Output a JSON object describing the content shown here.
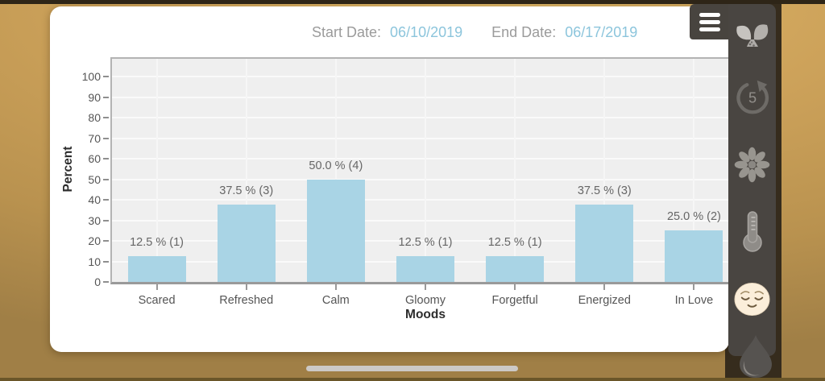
{
  "header": {
    "start_date_label": "Start Date:",
    "start_date_value": "06/10/2019",
    "end_date_label": "End Date:",
    "end_date_value": "06/17/2019"
  },
  "chart_data": {
    "type": "bar",
    "categories": [
      "Scared",
      "Refreshed",
      "Calm",
      "Gloomy",
      "Forgetful",
      "Energized",
      "In Love"
    ],
    "values": [
      12.5,
      37.5,
      50.0,
      12.5,
      12.5,
      37.5,
      25.0
    ],
    "counts": [
      1,
      3,
      4,
      1,
      1,
      3,
      2
    ],
    "bar_labels": [
      "12.5 % (1)",
      "37.5 % (3)",
      "50.0 % (4)",
      "12.5 % (1)",
      "12.5 % (1)",
      "37.5 % (3)",
      "25.0 % (2)"
    ],
    "xlabel": "Moods",
    "ylabel": "Percent",
    "ylim": [
      0,
      100
    ],
    "ytick_step": 10,
    "grid": true,
    "legend": false,
    "bar_color": "#a9d4e5"
  },
  "sidebar": {
    "refresh_count": "5",
    "icons": [
      "menu-icon",
      "sprout-icon",
      "refresh-counter-icon",
      "flower-icon",
      "thermometer-icon",
      "calm-face-icon",
      "water-drop-icon"
    ]
  },
  "colors": {
    "accent_blue": "#8cc5dc",
    "bar_fill": "#a9d4e5",
    "background_gold": "#c79f58",
    "sidebar_gray": "#494541",
    "plot_background": "#efefef"
  }
}
